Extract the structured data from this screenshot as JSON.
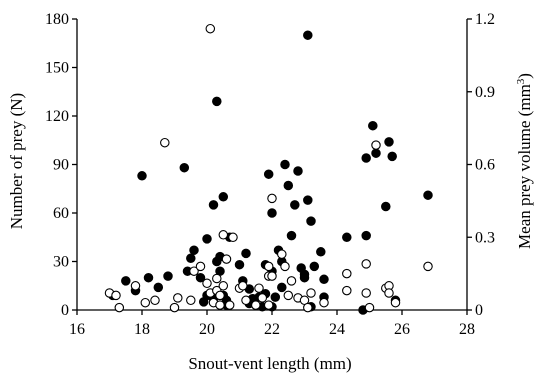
{
  "chart_data": {
    "type": "scatter",
    "xlabel": "Snout-vent length (mm)",
    "ylabel": "Number of prey (N)",
    "y2label_prefix": "Mean prey volume (mm",
    "y2label_sup": "3",
    "y2label_suffix": ")",
    "xlim": [
      16,
      28
    ],
    "xticks": [
      16,
      18,
      20,
      22,
      24,
      26,
      28
    ],
    "ylim": [
      0,
      180
    ],
    "yticks": [
      0,
      30,
      60,
      90,
      120,
      150,
      180
    ],
    "y2lim": [
      0,
      1.2
    ],
    "y2ticks": [
      "0",
      "0.3",
      "0.6",
      "0.9",
      "1.2"
    ],
    "grid": false,
    "legend": "none",
    "series": [
      {
        "axis": "left",
        "marker": "filled-circle",
        "color": "#000000",
        "points": [
          [
            17.1,
            9
          ],
          [
            17.5,
            18
          ],
          [
            17.8,
            12
          ],
          [
            18.2,
            20
          ],
          [
            18.5,
            14
          ],
          [
            18.8,
            21
          ],
          [
            18.0,
            83
          ],
          [
            19.3,
            88
          ],
          [
            19.5,
            32
          ],
          [
            19.6,
            37
          ],
          [
            19.4,
            24
          ],
          [
            19.8,
            20
          ],
          [
            19.9,
            5
          ],
          [
            20.0,
            9
          ],
          [
            20.0,
            44
          ],
          [
            20.2,
            65
          ],
          [
            20.3,
            129
          ],
          [
            20.3,
            30
          ],
          [
            20.4,
            33
          ],
          [
            20.4,
            24
          ],
          [
            20.5,
            9
          ],
          [
            20.6,
            6
          ],
          [
            20.7,
            45
          ],
          [
            20.5,
            70
          ],
          [
            20.2,
            7
          ],
          [
            20.6,
            3
          ],
          [
            21.0,
            28
          ],
          [
            21.1,
            18
          ],
          [
            21.2,
            35
          ],
          [
            21.3,
            13
          ],
          [
            21.4,
            7
          ],
          [
            21.5,
            3
          ],
          [
            21.6,
            8
          ],
          [
            21.7,
            2
          ],
          [
            21.8,
            28
          ],
          [
            21.9,
            84
          ],
          [
            22.0,
            60
          ],
          [
            22.0,
            24
          ],
          [
            22.1,
            8
          ],
          [
            22.2,
            37
          ],
          [
            22.3,
            30
          ],
          [
            22.3,
            14
          ],
          [
            22.4,
            90
          ],
          [
            22.5,
            77
          ],
          [
            22.6,
            46
          ],
          [
            22.7,
            65
          ],
          [
            22.8,
            86
          ],
          [
            22.9,
            26
          ],
          [
            23.0,
            20
          ],
          [
            23.0,
            22
          ],
          [
            23.1,
            170
          ],
          [
            23.1,
            68
          ],
          [
            23.2,
            55
          ],
          [
            23.3,
            27
          ],
          [
            23.5,
            36
          ],
          [
            23.6,
            19
          ],
          [
            23.6,
            8
          ],
          [
            24.3,
            45
          ],
          [
            24.9,
            94
          ],
          [
            24.9,
            46
          ],
          [
            25.1,
            114
          ],
          [
            25.2,
            97
          ],
          [
            25.5,
            64
          ],
          [
            25.6,
            104
          ],
          [
            25.7,
            95
          ],
          [
            25.8,
            6
          ],
          [
            26.8,
            71
          ],
          [
            24.8,
            0
          ],
          [
            22.0,
            2
          ],
          [
            21.3,
            4
          ],
          [
            23.2,
            2
          ],
          [
            21.8,
            10
          ]
        ]
      },
      {
        "axis": "right",
        "marker": "open-circle",
        "color": "#000000",
        "points": [
          [
            17.0,
            0.07
          ],
          [
            17.2,
            0.06
          ],
          [
            17.3,
            0.01
          ],
          [
            17.8,
            0.1
          ],
          [
            18.1,
            0.03
          ],
          [
            18.4,
            0.04
          ],
          [
            18.7,
            0.69
          ],
          [
            19.0,
            0.01
          ],
          [
            19.1,
            0.05
          ],
          [
            19.5,
            0.04
          ],
          [
            19.6,
            0.16
          ],
          [
            19.8,
            0.18
          ],
          [
            20.0,
            0.11
          ],
          [
            20.1,
            0.07
          ],
          [
            20.1,
            1.16
          ],
          [
            20.2,
            0.03
          ],
          [
            20.3,
            0.08
          ],
          [
            20.3,
            0.13
          ],
          [
            20.4,
            0.06
          ],
          [
            20.4,
            0.02
          ],
          [
            20.5,
            0.1
          ],
          [
            20.5,
            0.31
          ],
          [
            20.6,
            0.21
          ],
          [
            20.7,
            0.02
          ],
          [
            20.8,
            0.3
          ],
          [
            21.0,
            0.09
          ],
          [
            21.1,
            0.1
          ],
          [
            21.2,
            0.04
          ],
          [
            21.5,
            0.02
          ],
          [
            21.6,
            0.09
          ],
          [
            21.7,
            0.05
          ],
          [
            21.9,
            0.02
          ],
          [
            21.9,
            0.14
          ],
          [
            21.9,
            0.18
          ],
          [
            22.0,
            0.14
          ],
          [
            22.0,
            0.46
          ],
          [
            22.3,
            0.23
          ],
          [
            22.4,
            0.18
          ],
          [
            22.5,
            0.06
          ],
          [
            22.6,
            0.12
          ],
          [
            22.8,
            0.05
          ],
          [
            23.0,
            0.04
          ],
          [
            23.1,
            0.01
          ],
          [
            23.2,
            0.07
          ],
          [
            23.6,
            0.03
          ],
          [
            24.3,
            0.15
          ],
          [
            24.3,
            0.08
          ],
          [
            24.9,
            0.19
          ],
          [
            24.9,
            0.07
          ],
          [
            25.0,
            0.01
          ],
          [
            25.2,
            0.68
          ],
          [
            25.5,
            0.09
          ],
          [
            25.6,
            0.1
          ],
          [
            25.6,
            0.07
          ],
          [
            25.8,
            0.03
          ],
          [
            26.8,
            0.18
          ]
        ]
      }
    ]
  }
}
